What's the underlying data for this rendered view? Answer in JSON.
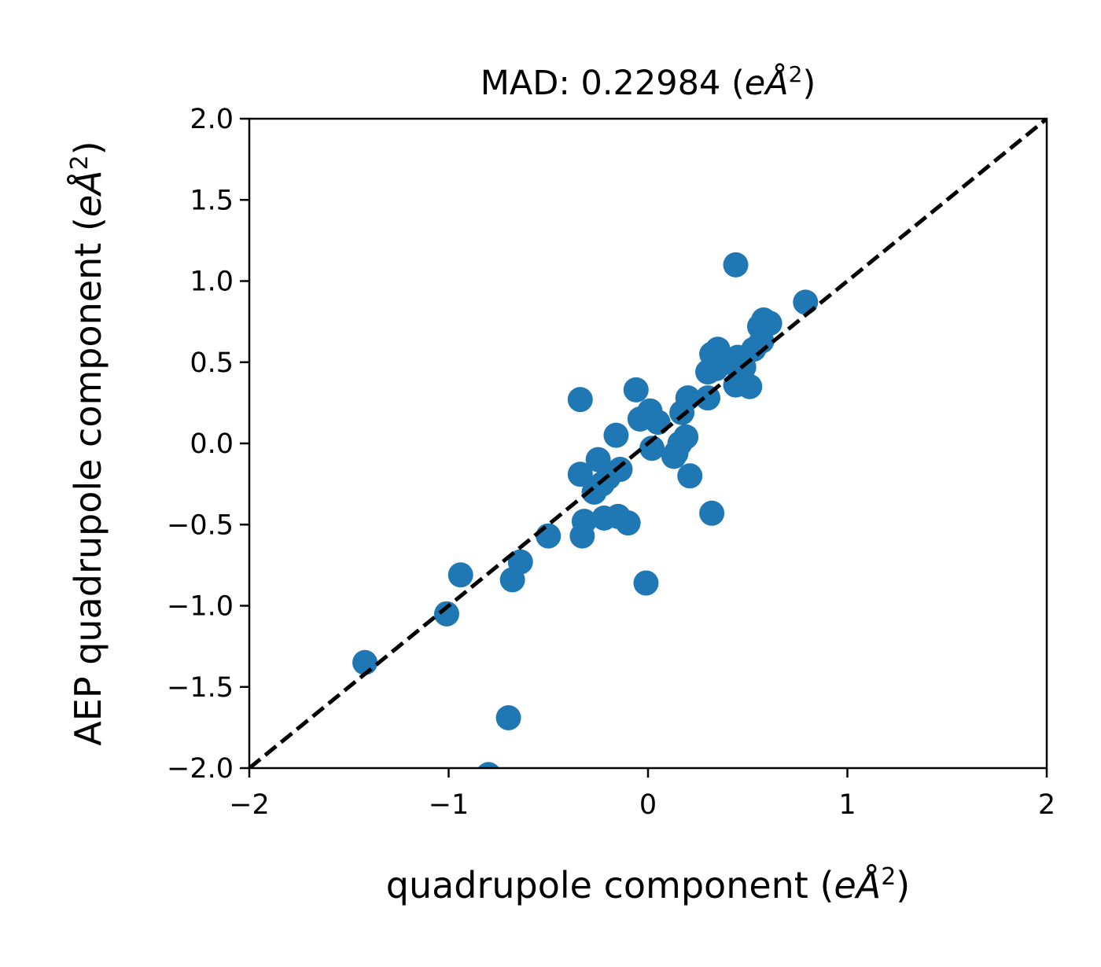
{
  "chart_data": {
    "type": "scatter",
    "title": "MAD: 0.22984 (eÅ²)",
    "title_parts": {
      "prefix": "MAD: 0.22984 (",
      "unit_italic": "eÅ",
      "sup": "2",
      "suffix": ")"
    },
    "xlabel": "quadrupole component (eÅ²)",
    "xlabel_parts": {
      "prefix": "quadrupole component (",
      "unit_italic": "eÅ",
      "sup": "2",
      "suffix": ")"
    },
    "ylabel": "AEP quadrupole component (eÅ²)",
    "ylabel_parts": {
      "prefix": "AEP quadrupole component (",
      "unit_italic": "eÅ",
      "sup": "2",
      "suffix": ")"
    },
    "xlim": [
      -2,
      2
    ],
    "ylim": [
      -2,
      2
    ],
    "xticks": [
      -2,
      -1,
      0,
      1,
      2
    ],
    "xtick_labels": [
      "−2",
      "−1",
      "0",
      "1",
      "2"
    ],
    "yticks": [
      -2.0,
      -1.5,
      -1.0,
      -0.5,
      0.0,
      0.5,
      1.0,
      1.5,
      2.0
    ],
    "ytick_labels": [
      "−2.0",
      "−1.5",
      "−1.0",
      "−0.5",
      "0.0",
      "0.5",
      "1.0",
      "1.5",
      "2.0"
    ],
    "grid": false,
    "reference_line": {
      "style": "dashed",
      "color": "#000000",
      "from": [
        -2,
        -2
      ],
      "to": [
        2,
        2
      ]
    },
    "point_color": "#1f77b4",
    "points": [
      [
        0.44,
        1.1
      ],
      [
        0.79,
        0.87
      ],
      [
        0.58,
        0.76
      ],
      [
        0.61,
        0.74
      ],
      [
        0.56,
        0.72
      ],
      [
        0.57,
        0.63
      ],
      [
        0.53,
        0.58
      ],
      [
        0.35,
        0.58
      ],
      [
        0.32,
        0.55
      ],
      [
        0.45,
        0.53
      ],
      [
        0.4,
        0.5
      ],
      [
        0.48,
        0.47
      ],
      [
        0.34,
        0.46
      ],
      [
        0.3,
        0.44
      ],
      [
        0.44,
        0.36
      ],
      [
        0.51,
        0.35
      ],
      [
        0.3,
        0.28
      ],
      [
        0.2,
        0.28
      ],
      [
        -0.34,
        0.27
      ],
      [
        -0.06,
        0.33
      ],
      [
        0.01,
        0.2
      ],
      [
        -0.04,
        0.15
      ],
      [
        0.05,
        0.13
      ],
      [
        0.17,
        0.19
      ],
      [
        -0.16,
        0.05
      ],
      [
        0.19,
        0.04
      ],
      [
        0.16,
        0.0
      ],
      [
        0.02,
        -0.03
      ],
      [
        0.14,
        -0.06
      ],
      [
        0.13,
        -0.08
      ],
      [
        -0.25,
        -0.1
      ],
      [
        -0.14,
        -0.16
      ],
      [
        -0.34,
        -0.19
      ],
      [
        0.21,
        -0.2
      ],
      [
        -0.2,
        -0.21
      ],
      [
        -0.23,
        -0.25
      ],
      [
        -0.27,
        -0.3
      ],
      [
        -0.15,
        -0.45
      ],
      [
        -0.22,
        -0.46
      ],
      [
        -0.1,
        -0.49
      ],
      [
        -0.32,
        -0.48
      ],
      [
        0.32,
        -0.43
      ],
      [
        -0.5,
        -0.57
      ],
      [
        -0.33,
        -0.57
      ],
      [
        -0.64,
        -0.73
      ],
      [
        -0.68,
        -0.84
      ],
      [
        -0.94,
        -0.81
      ],
      [
        -0.01,
        -0.86
      ],
      [
        -1.01,
        -1.05
      ],
      [
        -1.42,
        -1.35
      ],
      [
        -0.7,
        -1.69
      ],
      [
        -0.8,
        -2.04
      ]
    ]
  }
}
